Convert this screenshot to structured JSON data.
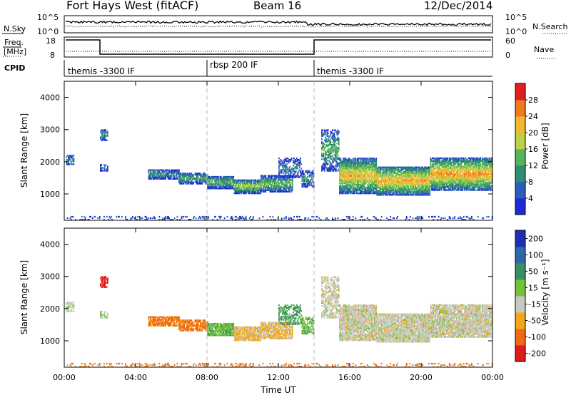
{
  "header": {
    "station": "Fort Hays West (fitACF)",
    "beam": "Beam 16",
    "date": "12/Dec/2014"
  },
  "noise_panel": {
    "left_label": "N.Sky",
    "right_label": "N.Search",
    "left_top_tick": "10^5",
    "left_bottom_tick": "10^0",
    "right_top_tick": "10^5",
    "right_bottom_tick": "10^0"
  },
  "freq_panel": {
    "left_label_line1": "Freq.",
    "left_label_line2": "[MHz]",
    "right_label": "Nave",
    "left_ticks": [
      "18",
      "8"
    ],
    "right_ticks": [
      "60",
      "0"
    ]
  },
  "cpid_panel": {
    "label": "CPID",
    "segments": [
      {
        "start_hour": 0,
        "end_hour": 8,
        "name": "themis -3300 IF"
      },
      {
        "start_hour": 8,
        "end_hour": 14,
        "name": "rbsp 200 IF"
      },
      {
        "start_hour": 14,
        "end_hour": 24,
        "name": "themis -3300 IF"
      }
    ]
  },
  "power_panel": {
    "ylabel": "Slant Range [km]",
    "cbar_label": "Power [dB]",
    "yticks": [
      "1000",
      "2000",
      "3000",
      "4000"
    ],
    "cbar_ticks": [
      "4",
      "8",
      "12",
      "16",
      "20",
      "24",
      "28"
    ]
  },
  "velocity_panel": {
    "ylabel": "Slant Range [km]",
    "cbar_label": "Velocity [m s⁻¹]",
    "yticks": [
      "1000",
      "2000",
      "3000",
      "4000"
    ],
    "cbar_ticks": [
      "200",
      "100",
      "50",
      "15",
      "-15",
      "-50",
      "-100",
      "-200"
    ]
  },
  "xaxis": {
    "label": "Time UT",
    "ticks": [
      "00:00",
      "04:00",
      "08:00",
      "12:00",
      "16:00",
      "20:00",
      "00:00"
    ]
  },
  "colors": {
    "power_scale": [
      "#1c2bd4",
      "#2a5dbd",
      "#2f8d72",
      "#55b35a",
      "#bcd14a",
      "#f2b830",
      "#f07a1c",
      "#e21f1f"
    ],
    "velocity_scale": [
      "#1f2fb4",
      "#2e68a8",
      "#3a8f62",
      "#73c23a",
      "#c8c8c0",
      "#f2a818",
      "#ef6a12",
      "#e01a18"
    ]
  },
  "chart_data": {
    "type": "heatmap",
    "x_range_hours": [
      0,
      24
    ],
    "y_range_km": [
      180,
      4500
    ],
    "power_dB_range": [
      0,
      30
    ],
    "velocity_range": [
      -250,
      250
    ],
    "bands": [
      {
        "t0": 0.1,
        "t1": 0.5,
        "r0": 1900,
        "r1": 2200,
        "p": 8,
        "v": 10,
        "dens": 0.6
      },
      {
        "t0": 2.0,
        "t1": 2.4,
        "r0": 2650,
        "r1": 3000,
        "p": 9,
        "v": -220,
        "dens": 0.7
      },
      {
        "t0": 2.0,
        "t1": 2.4,
        "r0": 1700,
        "r1": 1900,
        "p": 6,
        "v": 10,
        "dens": 0.5
      },
      {
        "t0": 4.7,
        "t1": 6.4,
        "r0": 1450,
        "r1": 1750,
        "p": 9,
        "v": -60,
        "dens": 0.8
      },
      {
        "t0": 6.4,
        "t1": 8.0,
        "r0": 1300,
        "r1": 1650,
        "p": 10,
        "v": -60,
        "dens": 0.8
      },
      {
        "t0": 8.0,
        "t1": 9.5,
        "r0": 1150,
        "r1": 1550,
        "p": 12,
        "v": 40,
        "dens": 0.85
      },
      {
        "t0": 9.5,
        "t1": 11.0,
        "r0": 1000,
        "r1": 1450,
        "p": 14,
        "v": -20,
        "dens": 0.85
      },
      {
        "t0": 11.0,
        "t1": 12.8,
        "r0": 1050,
        "r1": 1550,
        "p": 12,
        "v": -20,
        "dens": 0.8
      },
      {
        "t0": 12.0,
        "t1": 13.3,
        "r0": 1500,
        "r1": 2100,
        "p": 7,
        "v": 60,
        "dens": 0.5
      },
      {
        "t0": 13.3,
        "t1": 14.0,
        "r0": 1200,
        "r1": 1700,
        "p": 8,
        "v": 40,
        "dens": 0.6
      },
      {
        "t0": 14.4,
        "t1": 15.4,
        "r0": 1700,
        "r1": 3000,
        "p": 11,
        "v": 0,
        "dens": 0.55
      },
      {
        "t0": 15.4,
        "t1": 17.5,
        "r0": 1000,
        "r1": 2100,
        "p": 18,
        "v": 0,
        "dens": 0.85
      },
      {
        "t0": 17.5,
        "t1": 20.5,
        "r0": 950,
        "r1": 1850,
        "p": 19,
        "v": 0,
        "dens": 0.85
      },
      {
        "t0": 20.5,
        "t1": 24.0,
        "r0": 1100,
        "r1": 2100,
        "p": 20,
        "v": 0,
        "dens": 0.85
      },
      {
        "t0": 0.0,
        "t1": 24.0,
        "r0": 180,
        "r1": 300,
        "p": 5,
        "v": -60,
        "dens": 0.2
      }
    ]
  }
}
